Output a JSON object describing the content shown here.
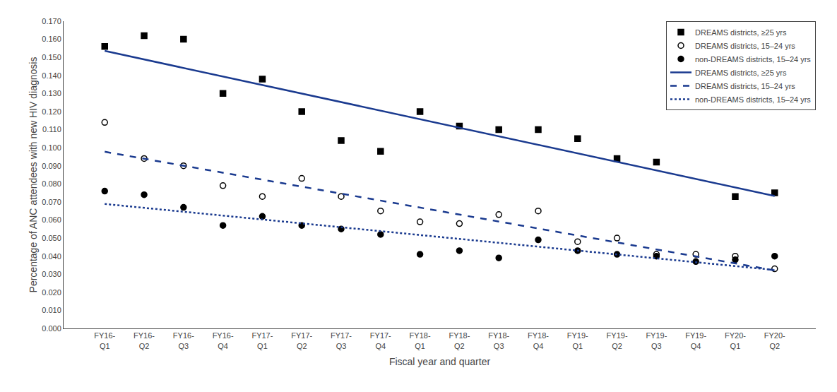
{
  "chart_data": {
    "type": "scatter",
    "xlabel": "Fiscal year and quarter",
    "ylabel": "Percentage of ANC attendees with new HIV diagnosis",
    "categories": [
      "FY16-\nQ1",
      "FY16-\nQ2",
      "FY16-\nQ3",
      "FY16-\nQ4",
      "FY17-\nQ1",
      "FY17-\nQ2",
      "FY17-\nQ3",
      "FY17-\nQ4",
      "FY18-\nQ1",
      "FY18-\nQ2",
      "FY18-\nQ3",
      "FY18-\nQ4",
      "FY19-\nQ1",
      "FY19-\nQ2",
      "FY19-\nQ3",
      "FY19-\nQ4",
      "FY20-\nQ1",
      "FY20-\nQ2"
    ],
    "series": [
      {
        "name": "DREAMS districts, ≥25 yrs",
        "type": "scatter",
        "marker": "square",
        "color": "#000000",
        "values": [
          0.156,
          0.162,
          0.16,
          0.13,
          0.138,
          0.12,
          0.104,
          0.098,
          0.12,
          0.112,
          0.11,
          0.11,
          0.105,
          0.094,
          0.092,
          null,
          0.073,
          0.075
        ]
      },
      {
        "name": "DREAMS districts, 15–24 yrs",
        "type": "scatter",
        "marker": "circle-open",
        "color": "#000000",
        "values": [
          0.114,
          0.094,
          0.09,
          0.079,
          0.073,
          0.083,
          0.073,
          0.065,
          0.059,
          0.058,
          0.063,
          0.065,
          0.048,
          0.05,
          0.041,
          0.041,
          0.04,
          0.033
        ]
      },
      {
        "name": "non-DREAMS districts, 15–24 yrs",
        "type": "scatter",
        "marker": "circle",
        "color": "#000000",
        "values": [
          0.076,
          0.074,
          0.067,
          0.057,
          0.062,
          0.057,
          0.055,
          0.052,
          0.041,
          0.043,
          0.039,
          0.049,
          0.043,
          0.041,
          0.04,
          0.037,
          0.038,
          0.04
        ]
      },
      {
        "name": "DREAMS districts, ≥25 yrs",
        "type": "line",
        "line_style": "solid",
        "color": "#1a3a8f",
        "values": [
          0.15358,
          0.14886,
          0.14414,
          0.13941,
          0.13469,
          0.12996,
          0.12524,
          0.12052,
          0.11579,
          0.11107,
          0.10634,
          0.10162,
          0.09689,
          0.09217,
          0.08745,
          0.08272,
          0.078,
          0.07327
        ]
      },
      {
        "name": "DREAMS districts, 15–24 yrs",
        "type": "line",
        "line_style": "dash",
        "color": "#1a3a8f",
        "values": [
          0.09776,
          0.0939,
          0.09004,
          0.08618,
          0.08232,
          0.07846,
          0.0746,
          0.07074,
          0.06687,
          0.06301,
          0.05915,
          0.05529,
          0.05143,
          0.04757,
          0.04371,
          0.03985,
          0.03599,
          0.03213
        ]
      },
      {
        "name": "non-DREAMS districts, 15–24 yrs",
        "type": "line",
        "line_style": "dot",
        "color": "#1a3a8f",
        "values": [
          0.06888,
          0.06673,
          0.06458,
          0.06243,
          0.06028,
          0.05813,
          0.05599,
          0.05384,
          0.05169,
          0.04954,
          0.04739,
          0.04524,
          0.04309,
          0.04094,
          0.03879,
          0.03664,
          0.03449,
          0.03234
        ]
      }
    ],
    "ylim": [
      0.0,
      0.17
    ],
    "yticks": [
      {
        "value": 0,
        "label": "0.000"
      },
      {
        "value": 0.01,
        "label": "0.010"
      },
      {
        "value": 0.02,
        "label": "0.020"
      },
      {
        "value": 0.03,
        "label": "0.030"
      },
      {
        "value": 0.04,
        "label": "0.040"
      },
      {
        "value": 0.05,
        "label": "0.050"
      },
      {
        "value": 0.06,
        "label": "0.060"
      },
      {
        "value": 0.07,
        "label": "0.070"
      },
      {
        "value": 0.08,
        "label": "0.080"
      },
      {
        "value": 0.09,
        "label": "0.090"
      },
      {
        "value": 0.1,
        "label": "0.100"
      },
      {
        "value": 0.11,
        "label": "0.110"
      },
      {
        "value": 0.12,
        "label": "0.120"
      },
      {
        "value": 0.13,
        "label": "0.130"
      },
      {
        "value": 0.14,
        "label": "0.140"
      },
      {
        "value": 0.15,
        "label": "0.150"
      },
      {
        "value": 0.16,
        "label": "0.160"
      },
      {
        "value": 0.17,
        "label": "0.170"
      }
    ],
    "grid": false,
    "legend": "upper right"
  }
}
